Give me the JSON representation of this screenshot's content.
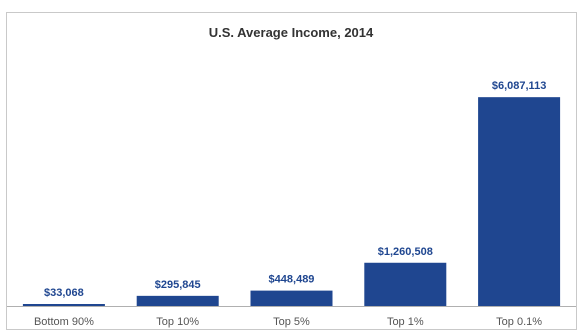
{
  "chart_data": {
    "type": "bar",
    "title": "U.S. Average Income, 2014",
    "categories": [
      "Bottom 90%",
      "Top 10%",
      "Top 5%",
      "Top 1%",
      "Top 0.1%"
    ],
    "values": [
      33068,
      295845,
      448489,
      1260508,
      6087113
    ],
    "data_labels": [
      "$33,068",
      "$295,845",
      "$448,489",
      "$1,260,508",
      "$6,087,113"
    ],
    "xlabel": "",
    "ylabel": "",
    "ylim": [
      0,
      6500000
    ],
    "grid": false,
    "legend": "none",
    "colors": {
      "bar": "#1f4690",
      "label": "#1f4690",
      "axis": "#b0b0b0"
    }
  }
}
